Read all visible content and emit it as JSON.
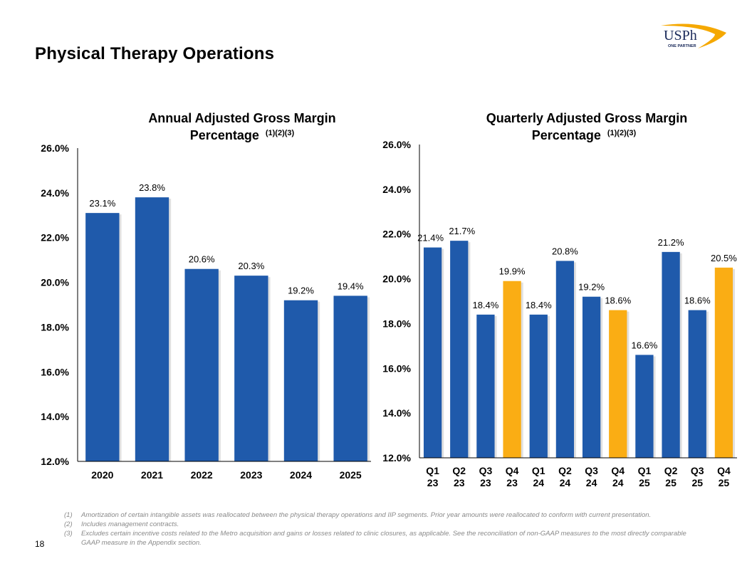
{
  "page": {
    "title": "Physical Therapy Operations",
    "page_number": "18",
    "logo": {
      "text": "USPh",
      "tagline": "ONE PARTNER",
      "accent_color": "#F5A800",
      "text_color": "#1a2a5a"
    }
  },
  "colors": {
    "blue": "#1F5AAB",
    "gold": "#FAAD14"
  },
  "chart_data": [
    {
      "type": "bar",
      "title": "Annual Adjusted Gross Margin Percentage",
      "title_line1": "Annual Adjusted Gross Margin",
      "title_line2": "Percentage",
      "title_footnotes": "(1)(2)(3)",
      "categories": [
        "2020",
        "2021",
        "2022",
        "2023",
        "2024",
        "2025"
      ],
      "values": [
        23.1,
        23.8,
        20.6,
        20.3,
        19.2,
        19.4
      ],
      "labels": [
        "23.1%",
        "23.8%",
        "20.6%",
        "20.3%",
        "19.2%",
        "19.4%"
      ],
      "bar_colors": [
        "blue",
        "blue",
        "blue",
        "blue",
        "blue",
        "blue"
      ],
      "ylim": [
        12.0,
        26.0
      ],
      "yticks": [
        "12.0%",
        "14.0%",
        "16.0%",
        "18.0%",
        "20.0%",
        "22.0%",
        "24.0%",
        "26.0%"
      ],
      "ytick_values": [
        12,
        14,
        16,
        18,
        20,
        22,
        24,
        26
      ],
      "xlabel": "",
      "ylabel": "",
      "grid": false,
      "legend": "none"
    },
    {
      "type": "bar",
      "title": "Quarterly Adjusted Gross Margin Percentage",
      "title_line1": "Quarterly Adjusted Gross Margin",
      "title_line2": "Percentage",
      "title_footnotes": "(1)(2)(3)",
      "categories": [
        "Q1 23",
        "Q2 23",
        "Q3 23",
        "Q4 23",
        "Q1 24",
        "Q2 24",
        "Q3 24",
        "Q4 24",
        "Q1 25",
        "Q2 25",
        "Q3 25",
        "Q4 25"
      ],
      "category_lines": [
        [
          "Q1",
          "23"
        ],
        [
          "Q2",
          "23"
        ],
        [
          "Q3",
          "23"
        ],
        [
          "Q4",
          "23"
        ],
        [
          "Q1",
          "24"
        ],
        [
          "Q2",
          "24"
        ],
        [
          "Q3",
          "24"
        ],
        [
          "Q4",
          "24"
        ],
        [
          "Q1",
          "25"
        ],
        [
          "Q2",
          "25"
        ],
        [
          "Q3",
          "25"
        ],
        [
          "Q4",
          "25"
        ]
      ],
      "values": [
        21.4,
        21.7,
        18.4,
        19.9,
        18.4,
        20.8,
        19.2,
        18.6,
        16.6,
        21.2,
        18.6,
        20.5
      ],
      "labels": [
        "21.4%",
        "21.7%",
        "18.4%",
        "19.9%",
        "18.4%",
        "20.8%",
        "19.2%",
        "18.6%",
        "16.6%",
        "21.2%",
        "18.6%",
        "20.5%"
      ],
      "bar_colors": [
        "blue",
        "blue",
        "blue",
        "gold",
        "blue",
        "blue",
        "blue",
        "gold",
        "blue",
        "blue",
        "blue",
        "gold"
      ],
      "ylim": [
        12.0,
        26.0
      ],
      "yticks": [
        "12.0%",
        "14.0%",
        "16.0%",
        "18.0%",
        "20.0%",
        "22.0%",
        "24.0%",
        "26.0%"
      ],
      "ytick_values": [
        12,
        14,
        16,
        18,
        20,
        22,
        24,
        26
      ],
      "xlabel": "",
      "ylabel": "",
      "grid": false,
      "legend": "none"
    }
  ],
  "footnotes": [
    {
      "num": "(1)",
      "text": "Amortization of certain intangible assets was reallocated between the physical therapy operations and IIP segments. Prior year amounts were reallocated to conform with current presentation."
    },
    {
      "num": "(2)",
      "text": "Includes management contracts."
    },
    {
      "num": "(3)",
      "text": "Excludes certain incentive costs related to the Metro acquisition and gains or losses related to clinic closures, as applicable. See the reconciliation of non-GAAP measures to the most directly comparable GAAP measure in the Appendix section."
    }
  ]
}
